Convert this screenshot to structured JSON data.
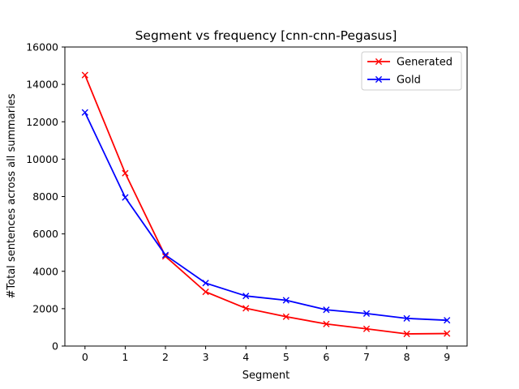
{
  "chart_data": {
    "type": "line",
    "title": "Segment vs frequency [cnn-cnn-Pegasus]",
    "xlabel": "Segment",
    "ylabel": "#Total sentences across all summaries",
    "x": [
      0,
      1,
      2,
      3,
      4,
      5,
      6,
      7,
      8,
      9
    ],
    "xticks": [
      "0",
      "1",
      "2",
      "3",
      "4",
      "5",
      "6",
      "7",
      "8",
      "9"
    ],
    "yticks": [
      "0",
      "2000",
      "4000",
      "6000",
      "8000",
      "10000",
      "12000",
      "14000",
      "16000"
    ],
    "xlim": [
      -0.5,
      9.5
    ],
    "ylim": [
      0,
      16000
    ],
    "grid": false,
    "legend_position": "top-right",
    "marker": "x",
    "series": [
      {
        "name": "Generated",
        "color": "#ff0000",
        "values": [
          14500,
          9250,
          4800,
          2900,
          2020,
          1570,
          1180,
          920,
          650,
          670
        ]
      },
      {
        "name": "Gold",
        "color": "#0000ff",
        "values": [
          12500,
          7950,
          4870,
          3370,
          2680,
          2450,
          1940,
          1740,
          1480,
          1380
        ]
      }
    ]
  }
}
